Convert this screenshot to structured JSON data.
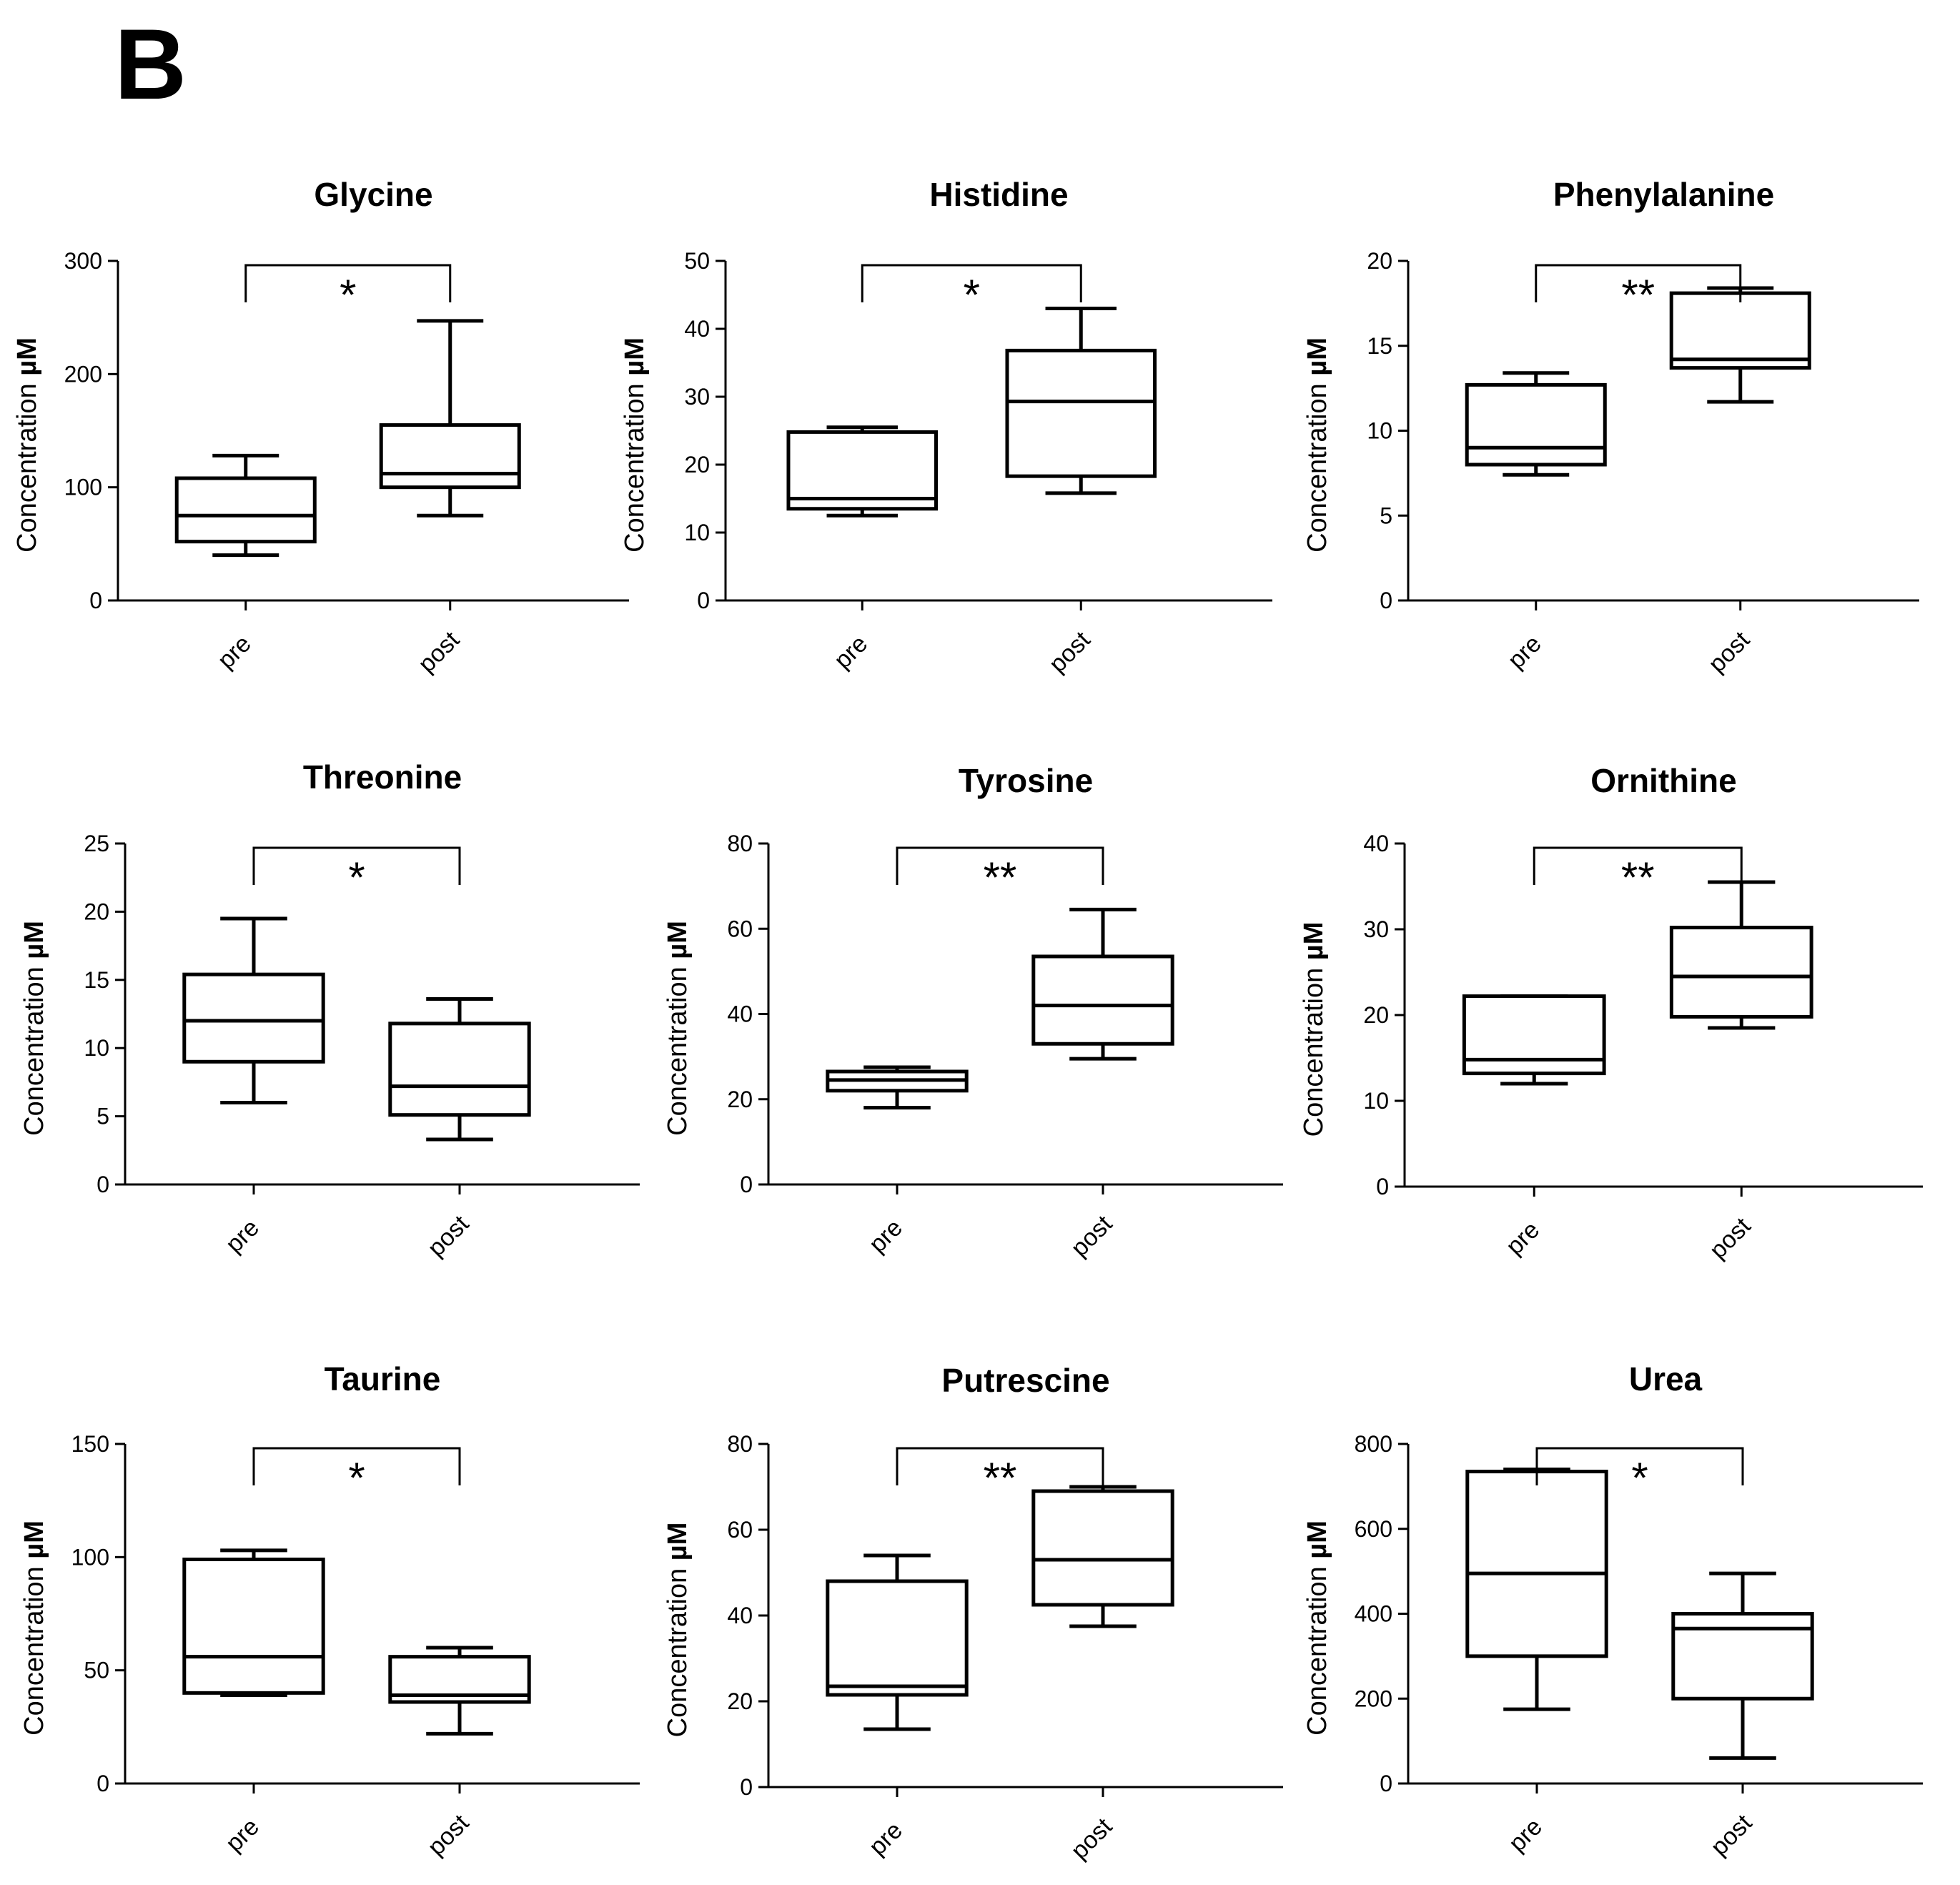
{
  "panel_label": "B",
  "chart_data": [
    {
      "type": "boxplot",
      "title": "Glycine",
      "ylabel": "Concentration",
      "yunit": "µM",
      "categories": [
        "pre",
        "post"
      ],
      "ylim": [
        0,
        300
      ],
      "yticks": [
        0,
        100,
        200,
        300
      ],
      "boxes": [
        {
          "category": "pre",
          "min": 40,
          "q1": 52,
          "median": 75,
          "q3": 108,
          "max": 128
        },
        {
          "category": "post",
          "min": 75,
          "q1": 100,
          "median": 112,
          "q3": 155,
          "max": 247
        }
      ],
      "significance": "*"
    },
    {
      "type": "boxplot",
      "title": "Histidine",
      "ylabel": "Concentration",
      "yunit": "µM",
      "categories": [
        "pre",
        "post"
      ],
      "ylim": [
        0,
        50
      ],
      "yticks": [
        0,
        10,
        20,
        30,
        40,
        50
      ],
      "boxes": [
        {
          "category": "pre",
          "min": 12.5,
          "q1": 13.5,
          "median": 15,
          "q3": 24.8,
          "max": 25.5
        },
        {
          "category": "post",
          "min": 15.8,
          "q1": 18.3,
          "median": 29.3,
          "q3": 36.8,
          "max": 43
        }
      ],
      "significance": "*"
    },
    {
      "type": "boxplot",
      "title": "Phenylalanine",
      "ylabel": "Concentration",
      "yunit": "µM",
      "categories": [
        "pre",
        "post"
      ],
      "ylim": [
        0,
        20
      ],
      "yticks": [
        0,
        5,
        10,
        15,
        20
      ],
      "boxes": [
        {
          "category": "pre",
          "min": 7.4,
          "q1": 8.0,
          "median": 9.0,
          "q3": 12.7,
          "max": 13.4
        },
        {
          "category": "post",
          "min": 11.7,
          "q1": 13.7,
          "median": 14.2,
          "q3": 18.1,
          "max": 18.4
        }
      ],
      "significance": "**"
    },
    {
      "type": "boxplot",
      "title": "Threonine",
      "ylabel": "Concentration",
      "yunit": "µM",
      "categories": [
        "pre",
        "post"
      ],
      "ylim": [
        0,
        25
      ],
      "yticks": [
        0,
        5,
        10,
        15,
        20,
        25
      ],
      "boxes": [
        {
          "category": "pre",
          "min": 6.0,
          "q1": 9.0,
          "median": 12.0,
          "q3": 15.4,
          "max": 19.5
        },
        {
          "category": "post",
          "min": 3.3,
          "q1": 5.1,
          "median": 7.2,
          "q3": 11.8,
          "max": 13.6
        }
      ],
      "significance": "*"
    },
    {
      "type": "boxplot",
      "title": "Tyrosine",
      "ylabel": "Concentration",
      "yunit": "µM",
      "categories": [
        "pre",
        "post"
      ],
      "ylim": [
        0,
        80
      ],
      "yticks": [
        0,
        20,
        40,
        60,
        80
      ],
      "boxes": [
        {
          "category": "pre",
          "min": 18,
          "q1": 22,
          "median": 24.5,
          "q3": 26.5,
          "max": 27.5
        },
        {
          "category": "post",
          "min": 29.5,
          "q1": 33,
          "median": 42,
          "q3": 53.5,
          "max": 64.5
        }
      ],
      "significance": "**"
    },
    {
      "type": "boxplot",
      "title": "Ornithine",
      "ylabel": "Concentration",
      "yunit": "µM",
      "categories": [
        "pre",
        "post"
      ],
      "ylim": [
        0,
        40
      ],
      "yticks": [
        0,
        10,
        20,
        30,
        40
      ],
      "boxes": [
        {
          "category": "pre",
          "min": 12,
          "q1": 13.2,
          "median": 14.8,
          "q3": 22.2,
          "max": 22.2
        },
        {
          "category": "post",
          "min": 18.5,
          "q1": 19.8,
          "median": 24.5,
          "q3": 30.2,
          "max": 35.5
        }
      ],
      "significance": "**"
    },
    {
      "type": "boxplot",
      "title": "Taurine",
      "ylabel": "Concentration",
      "yunit": "µM",
      "categories": [
        "pre",
        "post"
      ],
      "ylim": [
        0,
        150
      ],
      "yticks": [
        0,
        50,
        100,
        150
      ],
      "boxes": [
        {
          "category": "pre",
          "min": 39,
          "q1": 40,
          "median": 56,
          "q3": 99,
          "max": 103
        },
        {
          "category": "post",
          "min": 22,
          "q1": 36,
          "median": 39,
          "q3": 56,
          "max": 60
        }
      ],
      "significance": "*"
    },
    {
      "type": "boxplot",
      "title": "Putrescine",
      "ylabel": "Concentration",
      "yunit": "µM",
      "categories": [
        "pre",
        "post"
      ],
      "ylim": [
        0,
        80
      ],
      "yticks": [
        0,
        20,
        40,
        60,
        80
      ],
      "boxes": [
        {
          "category": "pre",
          "min": 13.5,
          "q1": 21.5,
          "median": 23.5,
          "q3": 48,
          "max": 54
        },
        {
          "category": "post",
          "min": 37.5,
          "q1": 42.5,
          "median": 53,
          "q3": 69,
          "max": 70
        }
      ],
      "significance": "**"
    },
    {
      "type": "boxplot",
      "title": "Urea",
      "ylabel": "Concentration",
      "yunit": "µM",
      "categories": [
        "pre",
        "post"
      ],
      "ylim": [
        0,
        800
      ],
      "yticks": [
        0,
        200,
        400,
        600,
        800
      ],
      "boxes": [
        {
          "category": "pre",
          "min": 175,
          "q1": 300,
          "median": 495,
          "q3": 735,
          "max": 740
        },
        {
          "category": "post",
          "min": 60,
          "q1": 200,
          "median": 365,
          "q3": 400,
          "max": 495
        }
      ],
      "significance": "*"
    }
  ]
}
